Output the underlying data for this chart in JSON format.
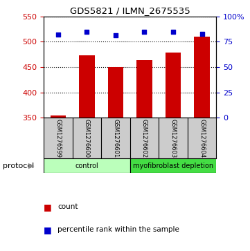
{
  "title": "GDS5821 / ILMN_2675535",
  "samples": [
    "GSM1276599",
    "GSM1276600",
    "GSM1276601",
    "GSM1276602",
    "GSM1276603",
    "GSM1276604"
  ],
  "bar_values": [
    355,
    473,
    450,
    463,
    478,
    510
  ],
  "percentile_values": [
    82,
    85,
    81,
    85,
    85,
    83
  ],
  "ylim_left": [
    350,
    550
  ],
  "ylim_right": [
    0,
    100
  ],
  "yticks_left": [
    350,
    400,
    450,
    500,
    550
  ],
  "yticks_right": [
    0,
    25,
    50,
    75,
    100
  ],
  "ytick_right_labels": [
    "0",
    "25",
    "50",
    "75",
    "100%"
  ],
  "bar_color": "#cc0000",
  "dot_color": "#0000cc",
  "left_axis_color": "#cc0000",
  "right_axis_color": "#0000cc",
  "protocol_groups": [
    {
      "label": "control",
      "count": 3,
      "color": "#bbffbb"
    },
    {
      "label": "myofibroblast depletion",
      "count": 3,
      "color": "#44dd44"
    }
  ],
  "protocol_label": "protocol",
  "legend_items": [
    {
      "label": "count",
      "color": "#cc0000"
    },
    {
      "label": "percentile rank within the sample",
      "color": "#0000cc"
    }
  ],
  "sample_box_color": "#cccccc",
  "background_color": "#ffffff",
  "bar_width": 0.55
}
